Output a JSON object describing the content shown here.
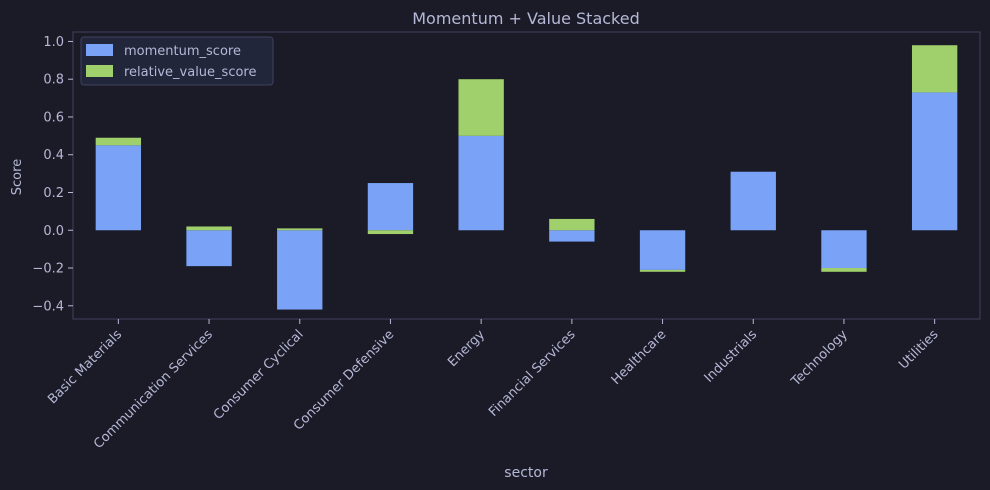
{
  "chart_data": {
    "type": "bar",
    "stacked": true,
    "title": "Momentum + Value Stacked",
    "xlabel": "sector",
    "ylabel": "Score",
    "ylim": [
      -0.47,
      1.05
    ],
    "yticks": [
      -0.4,
      -0.2,
      0.0,
      0.2,
      0.4,
      0.6,
      0.8,
      1.0
    ],
    "ytick_labels": [
      "−0.4",
      "−0.2",
      "0.0",
      "0.2",
      "0.4",
      "0.6",
      "0.8",
      "1.0"
    ],
    "grid": false,
    "legend_position": "top-left",
    "categories": [
      "Basic Materials",
      "Communication Services",
      "Consumer Cyclical",
      "Consumer Defensive",
      "Energy",
      "Financial Services",
      "Healthcare",
      "Industrials",
      "Technology",
      "Utilities"
    ],
    "series": [
      {
        "name": "momentum_score",
        "color": "#7aa2f7",
        "values": [
          0.45,
          -0.19,
          -0.42,
          0.25,
          0.5,
          -0.06,
          -0.21,
          0.31,
          -0.2,
          0.73
        ]
      },
      {
        "name": "relative_value_score",
        "color": "#a0d06b",
        "values": [
          0.04,
          0.02,
          0.01,
          -0.02,
          0.3,
          0.06,
          -0.01,
          0.0,
          -0.02,
          0.25
        ]
      }
    ]
  },
  "colors": {
    "background": "#1b1b27",
    "axes_edge": "#3f4260",
    "text": "#b5b8d6",
    "legend_bg": "#22263a"
  }
}
